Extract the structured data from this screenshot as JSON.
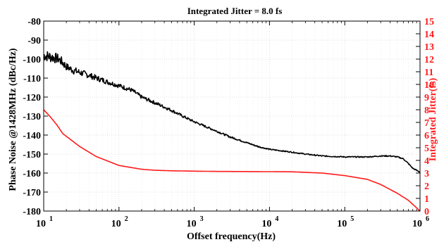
{
  "chart_data": {
    "type": "line",
    "title": "Integrated Jitter =  8.0 fs",
    "xlabel": "Offset frequency(Hz)",
    "ylabel": "Phase Noise @1428MHz (dBc/Hz)",
    "y2label": "Integrated Jitter(fs)",
    "xscale": "log",
    "xlim": [
      10,
      1000000
    ],
    "ylim": [
      -180,
      -80
    ],
    "y2lim": [
      0,
      15
    ],
    "grid": true,
    "x_ticks": [
      {
        "base": "10",
        "exp": "1"
      },
      {
        "base": "10",
        "exp": "2"
      },
      {
        "base": "10",
        "exp": "3"
      },
      {
        "base": "10",
        "exp": "4"
      },
      {
        "base": "10",
        "exp": "5"
      },
      {
        "base": "10",
        "exp": "6"
      }
    ],
    "y_ticks": [
      "-80",
      "-90",
      "-100",
      "-110",
      "-120",
      "-130",
      "-140",
      "-150",
      "-160",
      "-170",
      "-180"
    ],
    "y2_ticks": [
      "0",
      "1",
      "2",
      "3",
      "4",
      "5",
      "6",
      "7",
      "8",
      "9",
      "10",
      "11",
      "12",
      "13",
      "14",
      "15"
    ],
    "series": [
      {
        "axis": "left",
        "color": "#000000",
        "x": [
          10,
          13,
          16,
          18,
          20,
          25,
          30,
          40,
          50,
          60,
          70,
          100,
          150,
          200,
          300,
          500,
          700,
          1000,
          2000,
          3000,
          5000,
          7000,
          10000,
          20000,
          30000,
          50000,
          100000,
          200000,
          300000,
          400000,
          500000,
          600000,
          700000,
          800000,
          1000000
        ],
        "y": [
          -98,
          -99,
          -100,
          -102,
          -104,
          -106,
          -107,
          -108.5,
          -110,
          -111,
          -112,
          -114,
          -116.5,
          -120,
          -123,
          -127,
          -130,
          -133,
          -138,
          -141,
          -144,
          -146,
          -147.5,
          -149,
          -150,
          -151,
          -151.5,
          -151.5,
          -151,
          -151,
          -151.5,
          -152.5,
          -155,
          -157.5,
          -159.5
        ],
        "noise_amp": [
          3,
          3,
          2.5,
          2.5,
          2,
          2,
          1.8,
          1.6,
          1.5,
          1.4,
          1.3,
          1.2,
          1.1,
          1.0,
          0.9,
          0.8,
          0.7,
          0.6,
          0.5,
          0.5,
          0.4,
          0.4,
          0.3,
          0.3,
          0.3,
          0.3,
          0.3,
          0.3,
          0.3,
          0.3,
          0.3,
          0.3,
          0.3,
          0.3,
          0.3
        ]
      },
      {
        "axis": "right",
        "color": "#ff1a1a",
        "x": [
          10,
          12,
          15,
          18,
          20,
          30,
          50,
          100,
          200,
          300,
          500,
          1000,
          2000,
          5000,
          10000,
          20000,
          50000,
          100000,
          200000,
          300000,
          500000,
          700000,
          1000000
        ],
        "y": [
          8.0,
          7.5,
          6.8,
          6.1,
          5.9,
          5.1,
          4.3,
          3.6,
          3.3,
          3.22,
          3.18,
          3.15,
          3.13,
          3.12,
          3.11,
          3.1,
          3.0,
          2.8,
          2.5,
          2.1,
          1.4,
          0.85,
          0.0
        ]
      }
    ]
  }
}
